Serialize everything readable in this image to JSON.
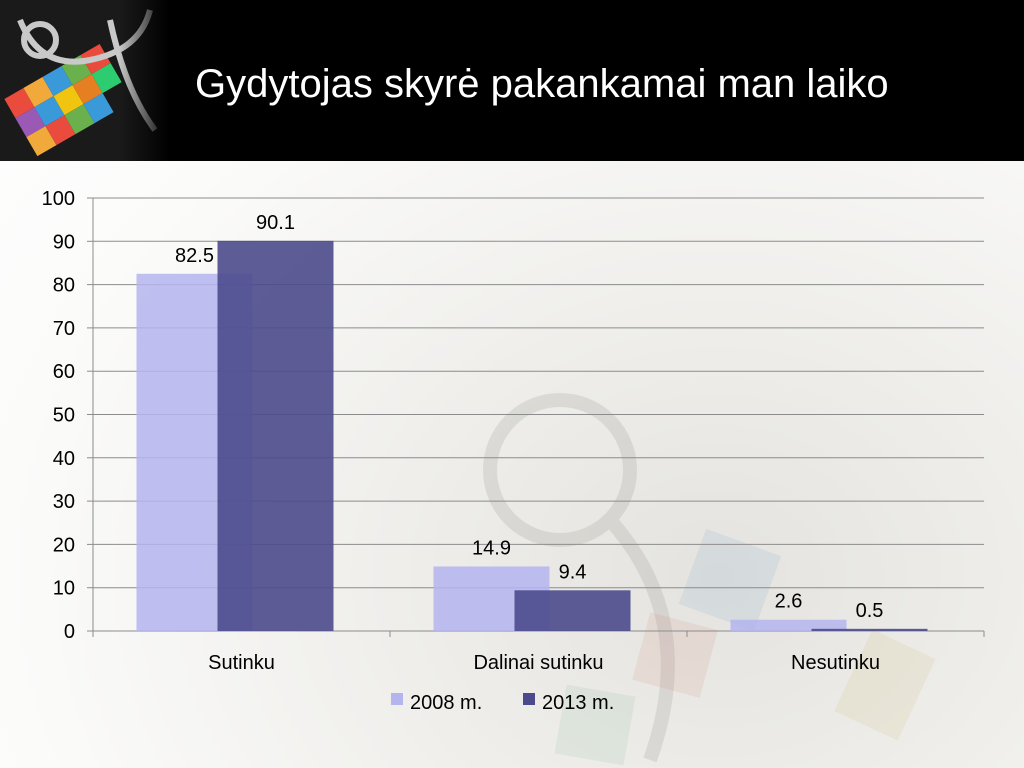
{
  "slide": {
    "title": "Gydytojas skyrė pakankamai man laiko"
  },
  "colors": {
    "series_2008": "#b4b4ee",
    "series_2013": "#4b4a8c",
    "header_bg": "#000000",
    "title_text": "#ffffff"
  },
  "chart_data": {
    "type": "bar",
    "title": "",
    "xlabel": "",
    "ylabel": "",
    "ylim": [
      0,
      100
    ],
    "yticks": [
      0,
      10,
      20,
      30,
      40,
      50,
      60,
      70,
      80,
      90,
      100
    ],
    "categories": [
      "Sutinku",
      "Dalinai sutinku",
      "Nesutinku"
    ],
    "series": [
      {
        "name": "2008 m.",
        "values": [
          82.5,
          14.9,
          2.6
        ],
        "color": "#b4b4ee"
      },
      {
        "name": "2013 m.",
        "values": [
          90.1,
          9.4,
          0.5
        ],
        "color": "#4b4a8c"
      }
    ],
    "data_labels": true,
    "grid": true,
    "legend": "bottom"
  }
}
